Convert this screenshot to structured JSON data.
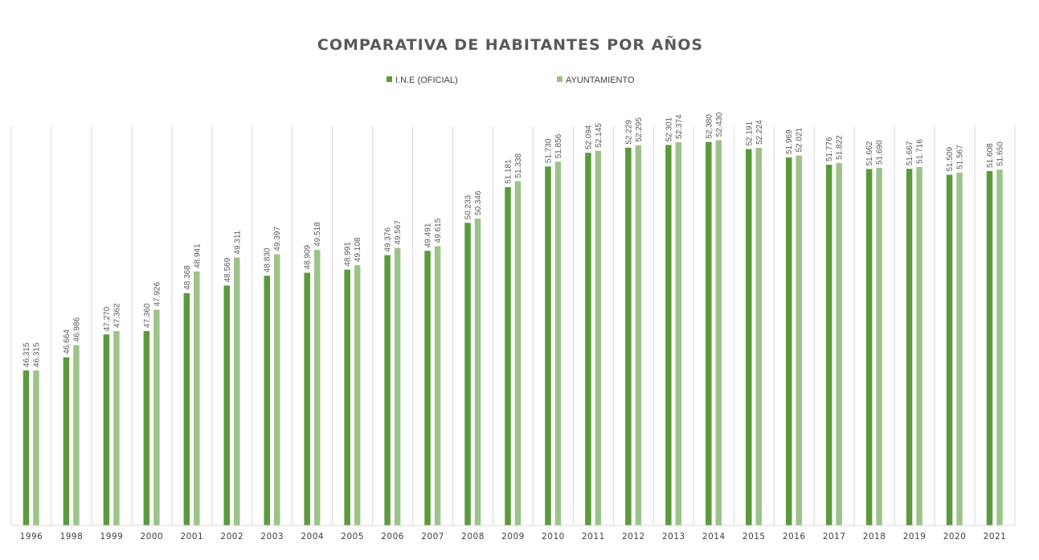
{
  "chart_data": {
    "type": "bar",
    "title": "COMPARATIVA DE HABITANTES POR AÑOS",
    "xlabel": "",
    "ylabel": "",
    "ylim": [
      42200,
      52800
    ],
    "grid": "vertical category separators",
    "legend_position": "top",
    "categories": [
      "1996",
      "1998",
      "1999",
      "2000",
      "2001",
      "2002",
      "2003",
      "2004",
      "2005",
      "2006",
      "2007",
      "2008",
      "2009",
      "2010",
      "2011",
      "2012",
      "2013",
      "2014",
      "2015",
      "2016",
      "2017",
      "2018",
      "2019",
      "2020",
      "2021"
    ],
    "series": [
      {
        "name": "I.N.E (OFICIAL)",
        "color": "#5b9a3c",
        "values": [
          46315,
          46664,
          47270,
          47360,
          48368,
          48569,
          48830,
          48909,
          48991,
          49376,
          49491,
          50233,
          51181,
          51730,
          52094,
          52229,
          52301,
          52380,
          52191,
          51969,
          51776,
          51662,
          51667,
          51509,
          51608
        ],
        "labels": [
          "46.315",
          "46.664",
          "47.270",
          "47.360",
          "48.368",
          "48.569",
          "48.830",
          "48.909",
          "48.991",
          "49.376",
          "49.491",
          "50.233",
          "51.181",
          "51.730",
          "52.094",
          "52.229",
          "52.301",
          "52.380",
          "52.191",
          "51.969",
          "51.776",
          "51.662",
          "51.667",
          "51.509",
          "51.608"
        ]
      },
      {
        "name": "AYUNTAMIENTO",
        "color": "#9ec38a",
        "values": [
          46315,
          46986,
          47362,
          47926,
          48941,
          49311,
          49397,
          49518,
          49108,
          49567,
          49615,
          50346,
          51338,
          51856,
          52145,
          52295,
          52374,
          52430,
          52224,
          52021,
          51822,
          51690,
          51716,
          51567,
          51650
        ],
        "labels": [
          "46.315",
          "46.986",
          "47.362",
          "47.926",
          "48.941",
          "49.311",
          "49.397",
          "49.518",
          "49.108",
          "49.567",
          "49.615",
          "50.346",
          "51.338",
          "51.856",
          "52.145",
          "52.295",
          "52.374",
          "52.430",
          "52.224",
          "52.021",
          "51.822",
          "51.690",
          "51.716",
          "51.567",
          "51.650"
        ]
      }
    ]
  }
}
